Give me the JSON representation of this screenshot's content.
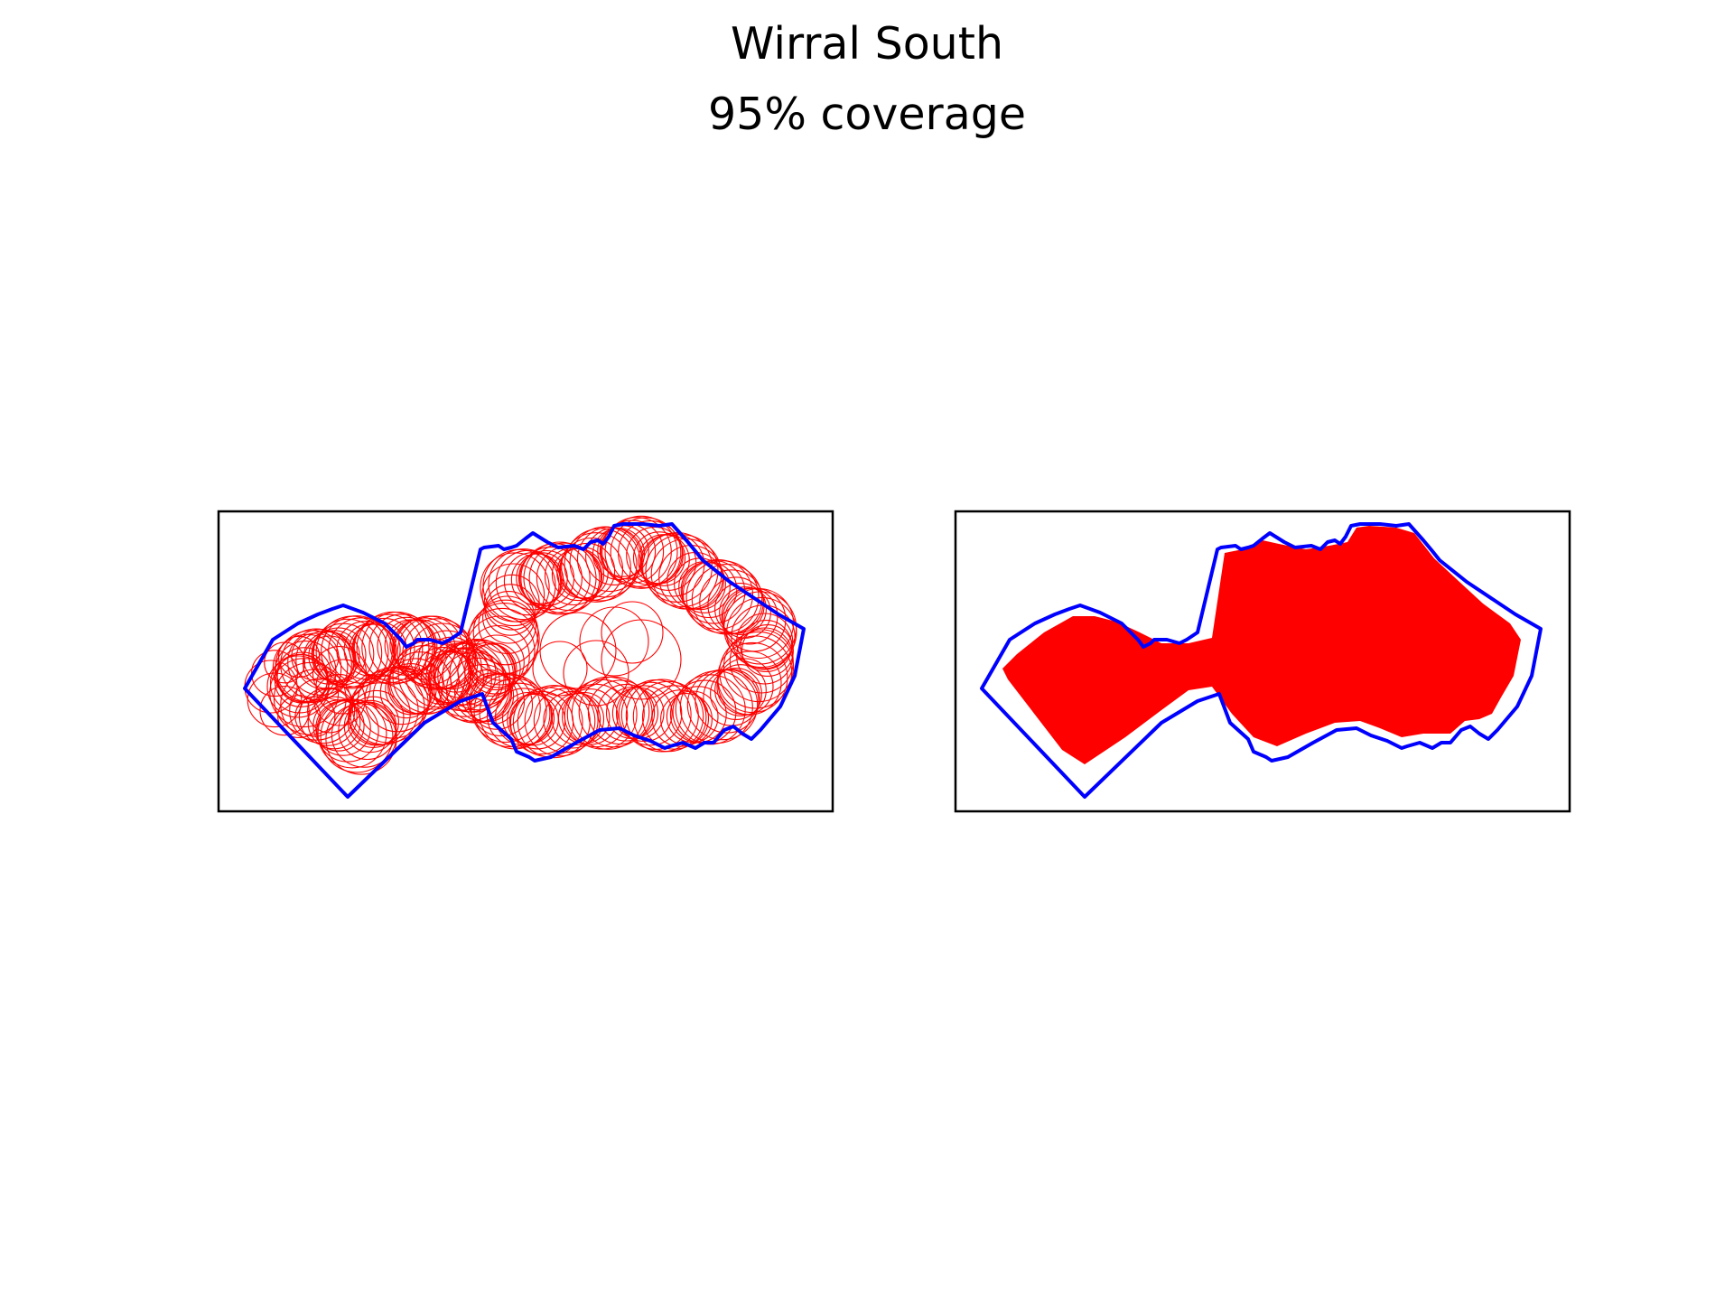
{
  "figure": {
    "title": "Wirral South",
    "subtitle": "95% coverage"
  },
  "colors": {
    "boundary": "#0000ff",
    "coverage": "#ff0000",
    "frame": "#000000",
    "background": "#ffffff"
  },
  "panels": [
    {
      "id": "left",
      "style": "outline-circles",
      "description_name": "circle-outlines-map"
    },
    {
      "id": "right",
      "style": "filled-coverage",
      "description_name": "filled-coverage-map"
    }
  ]
}
